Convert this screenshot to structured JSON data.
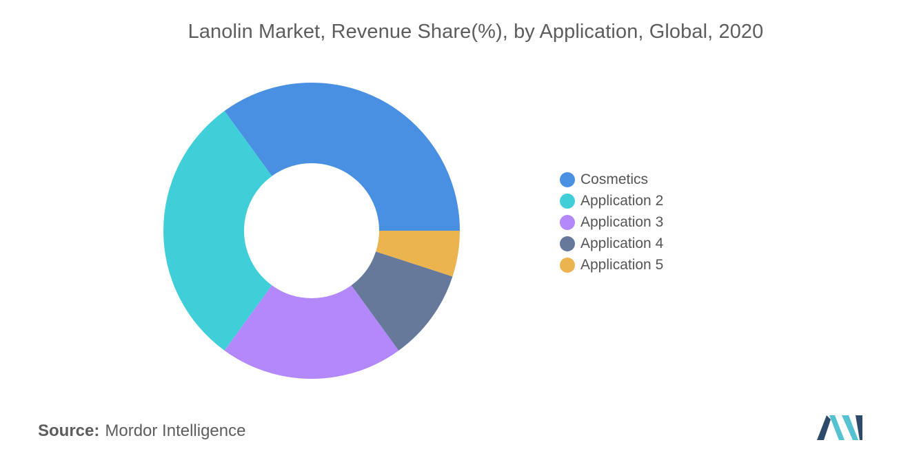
{
  "chart_data": {
    "type": "pie",
    "donut": true,
    "title": "Lanolin Market, Revenue Share(%), by Application, Global, 2020",
    "categories": [
      "Cosmetics",
      "Application 2",
      "Application 3",
      "Application 4",
      "Application 5"
    ],
    "values": [
      35,
      30,
      20,
      10,
      5
    ],
    "colors": [
      "#4a90e2",
      "#40cfd9",
      "#b388fb",
      "#66799b",
      "#ecb44e"
    ],
    "legend_position": "right"
  },
  "source": {
    "label": "Source:",
    "text": "Mordor Intelligence"
  },
  "logo": {
    "icon": "mordor-intelligence-logo",
    "colors": [
      "#2e4a6b",
      "#56c1d1"
    ]
  }
}
